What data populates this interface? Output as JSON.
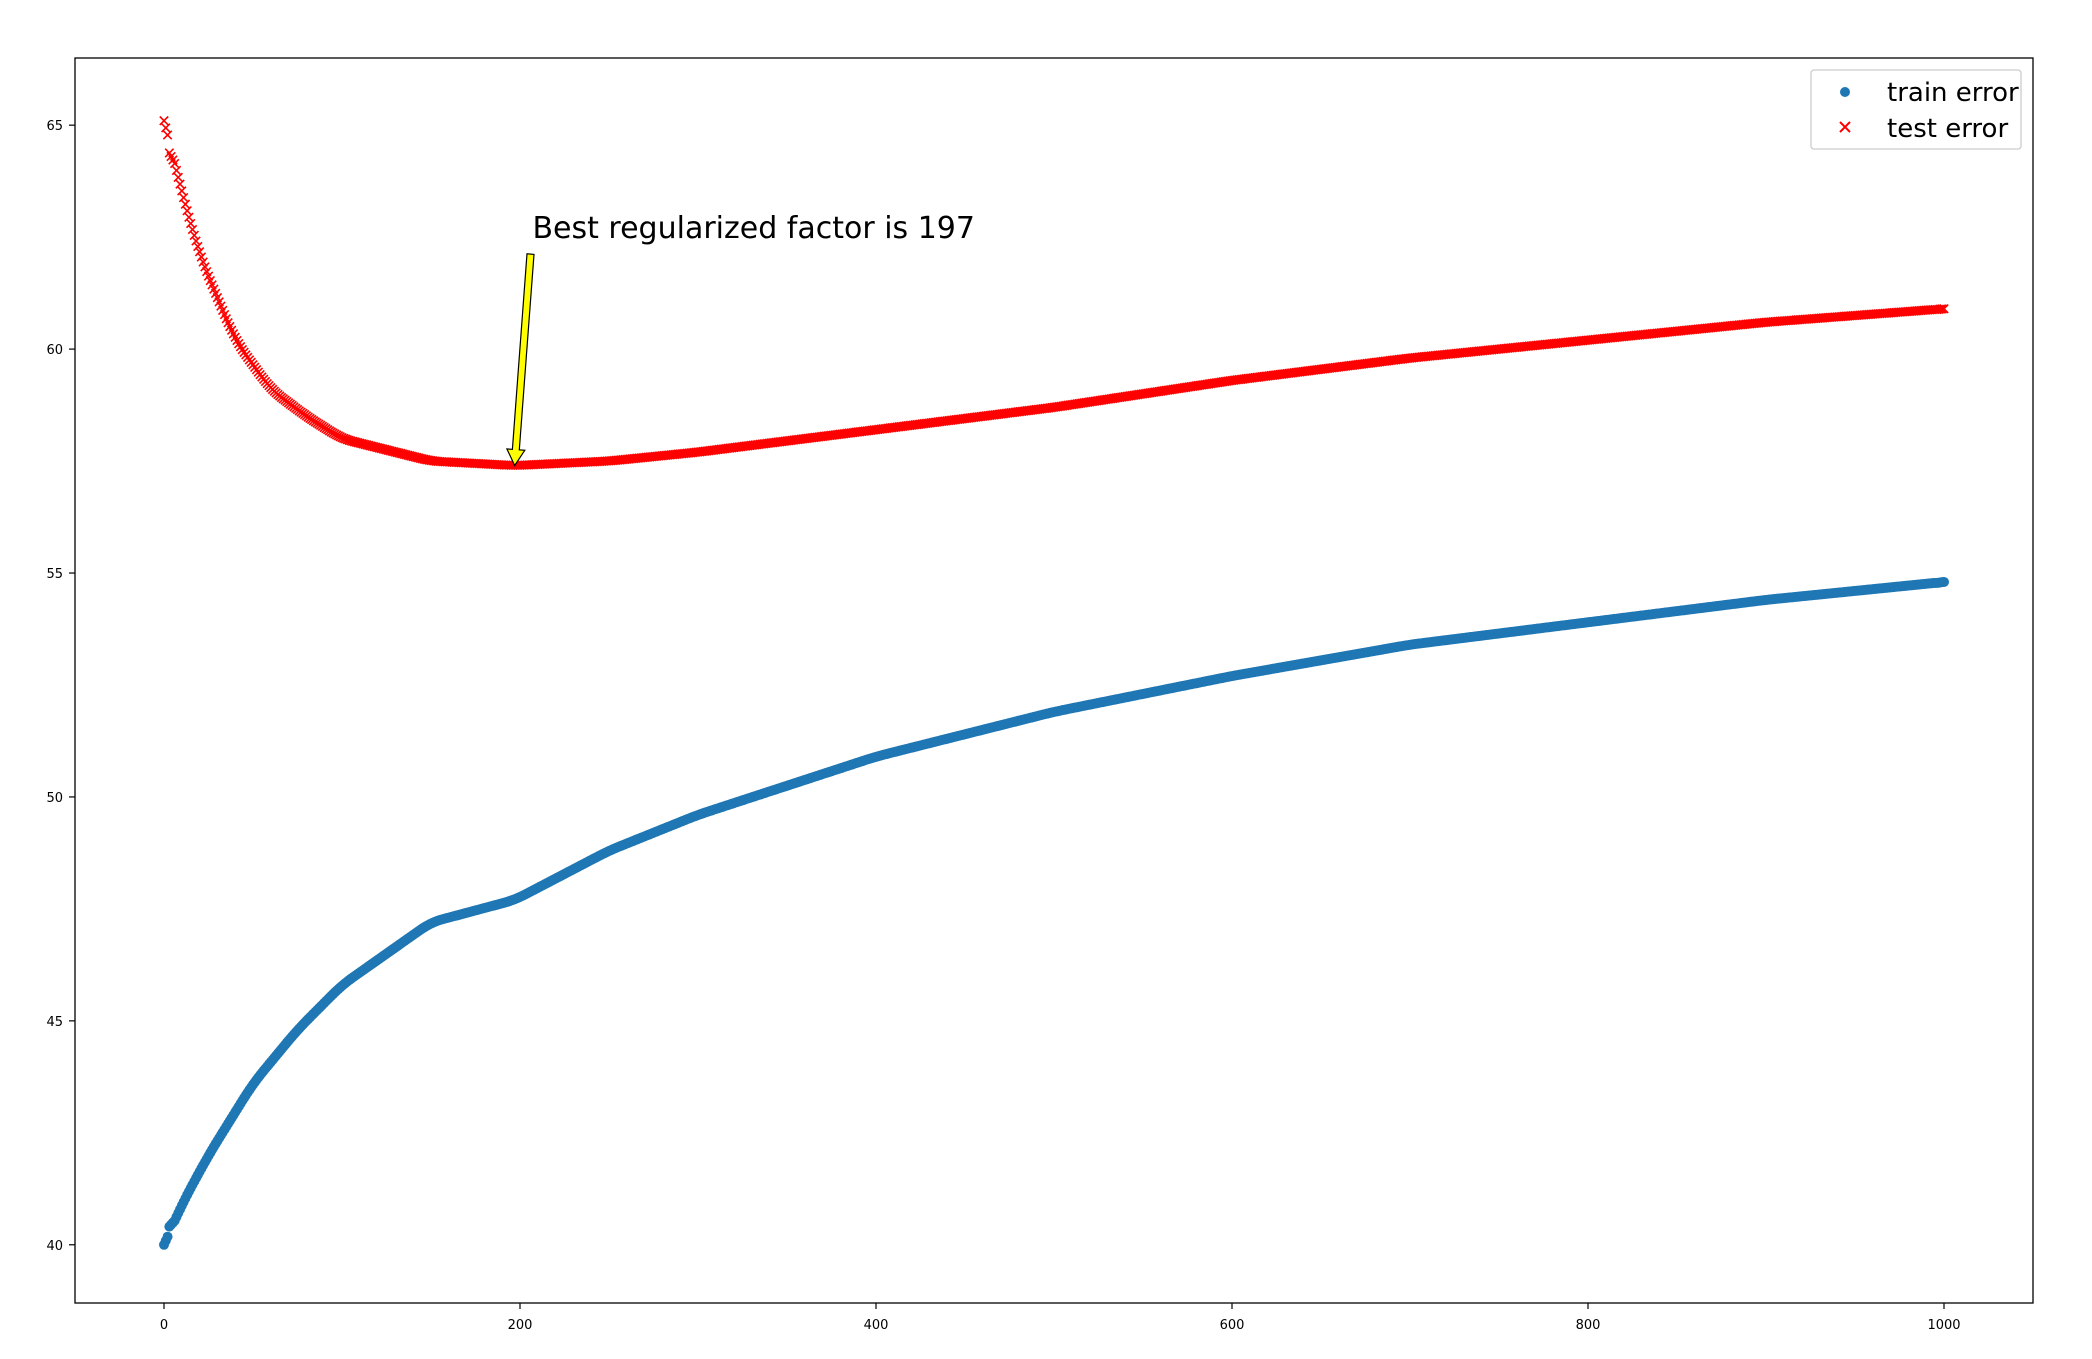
{
  "chart_data": {
    "type": "scatter",
    "title": "",
    "xlabel": "",
    "ylabel": "",
    "xlim": [
      -50,
      1050
    ],
    "ylim": [
      38.7,
      66.5
    ],
    "xticks": [
      0,
      200,
      400,
      600,
      800,
      1000
    ],
    "yticks": [
      40,
      45,
      50,
      55,
      60,
      65
    ],
    "grid": false,
    "legend_position": "top-right",
    "x": {
      "start": 0,
      "end": 1000,
      "step": 1
    },
    "series": [
      {
        "name": "train error",
        "marker": "circle",
        "color": "#1f77b4",
        "sampled_points": [
          [
            0,
            40.0
          ],
          [
            10,
            40.9
          ],
          [
            25,
            42.0
          ],
          [
            50,
            43.6
          ],
          [
            75,
            44.8
          ],
          [
            100,
            45.8
          ],
          [
            150,
            47.2
          ],
          [
            197,
            47.7
          ],
          [
            250,
            48.8
          ],
          [
            300,
            49.6
          ],
          [
            400,
            50.9
          ],
          [
            500,
            51.9
          ],
          [
            600,
            52.7
          ],
          [
            700,
            53.4
          ],
          [
            800,
            53.9
          ],
          [
            900,
            54.4
          ],
          [
            1000,
            54.8
          ]
        ]
      },
      {
        "name": "test error",
        "marker": "x",
        "color": "#ff0000",
        "sampled_points": [
          [
            0,
            65.1
          ],
          [
            10,
            63.5
          ],
          [
            20,
            62.1
          ],
          [
            40,
            60.2
          ],
          [
            60,
            59.1
          ],
          [
            80,
            58.5
          ],
          [
            100,
            58.0
          ],
          [
            150,
            57.5
          ],
          [
            197,
            57.4
          ],
          [
            250,
            57.5
          ],
          [
            300,
            57.7
          ],
          [
            400,
            58.2
          ],
          [
            500,
            58.7
          ],
          [
            600,
            59.3
          ],
          [
            700,
            59.8
          ],
          [
            800,
            60.2
          ],
          [
            900,
            60.6
          ],
          [
            1000,
            60.9
          ]
        ]
      }
    ],
    "annotation": {
      "text": "Best regularized factor is 197",
      "x": 197,
      "y": 57.4,
      "arrow_color": "#ffff00",
      "text_x": 207,
      "text_y": 62.3
    }
  }
}
